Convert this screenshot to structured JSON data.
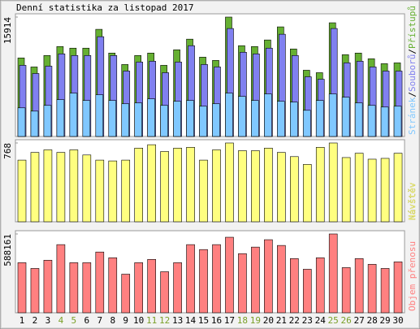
{
  "chart_data": [
    {
      "type": "bar",
      "title": "Denní statistika za listopad 2017",
      "ylim": [
        0,
        15914
      ],
      "yticks": [
        15914
      ],
      "legend_separator": "/",
      "series": [
        {
          "name": "Přístupů",
          "color": "#66b032",
          "values": [
            10464,
            9265,
            10791,
            11990,
            11772,
            11772,
            14279,
            11118,
            9592,
            10791,
            11118,
            9483,
            11554,
            12971,
            10573,
            10137,
            15914,
            12099,
            11990,
            12862,
            14606,
            11663,
            8829,
            8502,
            15151,
            10900,
            11118,
            10355,
            9701,
            9810
          ]
        },
        {
          "name": "Souborů",
          "color": "#8080f0",
          "values": [
            9483,
            8393,
            9374,
            11009,
            10791,
            10791,
            13298,
            10791,
            8720,
            9919,
            10028,
            8502,
            9919,
            12099,
            9592,
            9265,
            14388,
            11227,
            11009,
            11772,
            13625,
            10791,
            7957,
            7630,
            14388,
            9810,
            10028,
            9265,
            8720,
            8720
          ]
        },
        {
          "name": "Stránek",
          "color": "#80c8ff",
          "values": [
            3815,
            3379,
            4142,
            4905,
            5777,
            4796,
            5559,
            4796,
            4360,
            4469,
            5014,
            4142,
            4687,
            4796,
            4033,
            4360,
            5777,
            5341,
            4796,
            5668,
            4687,
            4578,
            3488,
            4796,
            5668,
            5232,
            4469,
            4142,
            3924,
            4033
          ]
        }
      ]
    },
    {
      "type": "bar",
      "ylim": [
        0,
        768
      ],
      "yticks": [
        768
      ],
      "series": [
        {
          "name": "Návštěv",
          "color": "#ffff80",
          "values": [
            601,
            676,
            701,
            676,
            701,
            651,
            601,
            593,
            601,
            718,
            751,
            685,
            718,
            726,
            601,
            701,
            768,
            693,
            693,
            718,
            676,
            635,
            559,
            726,
            768,
            626,
            668,
            610,
            618,
            668
          ]
        }
      ]
    },
    {
      "type": "bar",
      "ylim": [
        0,
        588161
      ],
      "yticks": [
        588161
      ],
      "categories": [
        "1",
        "2",
        "3",
        "4",
        "5",
        "6",
        "7",
        "8",
        "9",
        "10",
        "11",
        "12",
        "13",
        "14",
        "15",
        "16",
        "17",
        "18",
        "19",
        "20",
        "21",
        "22",
        "23",
        "24",
        "25",
        "26",
        "27",
        "28",
        "29",
        "30"
      ],
      "category_colors": [
        "#000",
        "#000",
        "#000",
        "#7aa028",
        "#7aa028",
        "#000",
        "#000",
        "#000",
        "#000",
        "#000",
        "#7aa028",
        "#7aa028",
        "#000",
        "#000",
        "#000",
        "#000",
        "#000",
        "#7aa028",
        "#7aa028",
        "#000",
        "#000",
        "#000",
        "#000",
        "#000",
        "#7aa028",
        "#7aa028",
        "#000",
        "#000",
        "#000",
        "#000"
      ],
      "series": [
        {
          "name": "Objem přenosu",
          "color": "#ff8080",
          "values": [
            373747,
            330858,
            392128,
            508541,
            373747,
            373747,
            453398,
            410509,
            287969,
            373747,
            398255,
            306350,
            373747,
            508541,
            471779,
            508541,
            563684,
            441144,
            490160,
            545303,
            502414,
            404382,
            324731,
            410509,
            588161,
            336985,
            404382,
            361493,
            330858,
            379874
          ]
        }
      ]
    }
  ]
}
